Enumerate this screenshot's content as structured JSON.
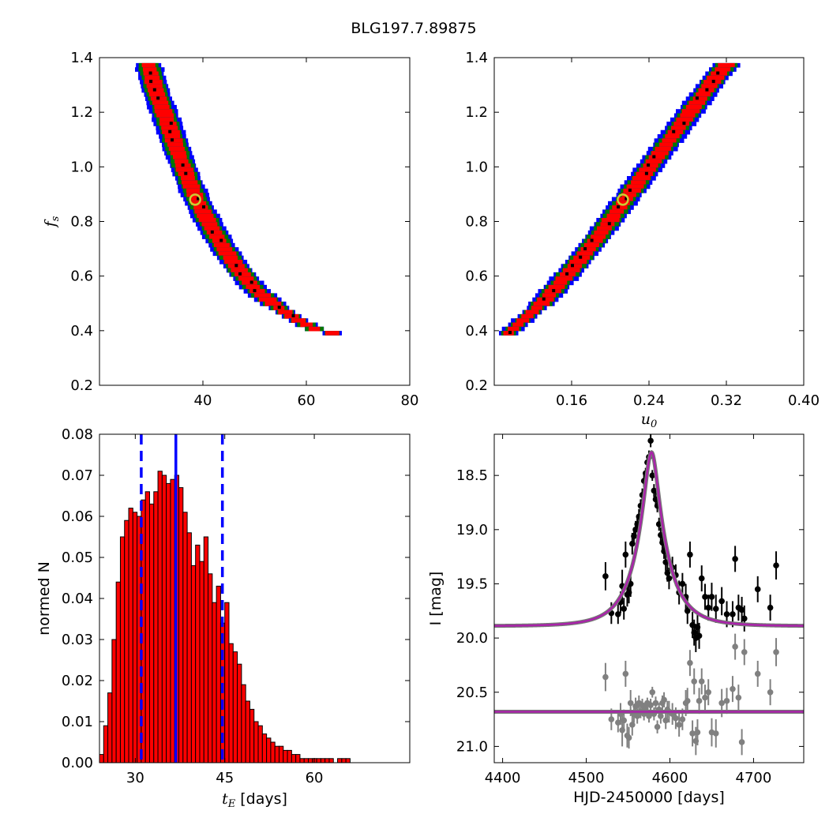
{
  "figure": {
    "title": "BLG197.7.89875"
  },
  "chart_data": [
    {
      "id": "fs_vs_tE",
      "type": "heatmap",
      "xlabel": "",
      "ylabel": "f_s",
      "ylabel_main": "f",
      "ylabel_sub": "s",
      "xlim": [
        20,
        80
      ],
      "ylim": [
        0.2,
        1.4
      ],
      "xticks": [
        40,
        60,
        80
      ],
      "yticks": [
        0.2,
        0.4,
        0.6,
        0.8,
        1.0,
        1.2,
        1.4
      ],
      "xtick_labels": [
        "40",
        "60",
        "80"
      ],
      "ytick_labels": [
        "0.2",
        "0.4",
        "0.6",
        "0.8",
        "1.0",
        "1.2",
        "1.4"
      ],
      "confidence_colors": [
        "#0000ff",
        "#007700",
        "#ff0000",
        "#000000"
      ],
      "ridge": [
        [
          29.5,
          1.38
        ],
        [
          31,
          1.28
        ],
        [
          33,
          1.18
        ],
        [
          35,
          1.07
        ],
        [
          37,
          0.97
        ],
        [
          39,
          0.88
        ],
        [
          41.5,
          0.79
        ],
        [
          44,
          0.71
        ],
        [
          47,
          0.63
        ],
        [
          50,
          0.56
        ],
        [
          54,
          0.5
        ],
        [
          58,
          0.45
        ],
        [
          62,
          0.41
        ],
        [
          65,
          0.4
        ]
      ],
      "best_fit": [
        38.5,
        0.88
      ]
    },
    {
      "id": "fs_vs_u0",
      "type": "heatmap",
      "xlabel": "u_0",
      "xlabel_main": "u",
      "xlabel_sub": "0",
      "ylabel": "",
      "xlim": [
        0.08,
        0.4
      ],
      "ylim": [
        0.2,
        1.4
      ],
      "xticks": [
        0.16,
        0.24,
        0.32,
        0.4
      ],
      "yticks": [
        0.2,
        0.4,
        0.6,
        0.8,
        1.0,
        1.2,
        1.4
      ],
      "xtick_labels": [
        "0.16",
        "0.24",
        "0.32",
        "0.40"
      ],
      "ytick_labels": [
        "0.2",
        "0.4",
        "0.6",
        "0.8",
        "1.0",
        "1.2",
        "1.4"
      ],
      "confidence_colors": [
        "#0000ff",
        "#007700",
        "#ff0000",
        "#000000"
      ],
      "ridge": [
        [
          0.092,
          0.39
        ],
        [
          0.13,
          0.51
        ],
        [
          0.16,
          0.63
        ],
        [
          0.185,
          0.74
        ],
        [
          0.21,
          0.86
        ],
        [
          0.235,
          0.98
        ],
        [
          0.26,
          1.1
        ],
        [
          0.285,
          1.22
        ],
        [
          0.31,
          1.34
        ],
        [
          0.32,
          1.38
        ]
      ],
      "best_fit": [
        0.213,
        0.88
      ]
    },
    {
      "id": "tE_histogram",
      "type": "bar",
      "xlabel": "t_E [days]",
      "xlabel_main": "t",
      "xlabel_sub": "E",
      "xlabel_rest": " [days]",
      "ylabel": "normed N",
      "xlim": [
        24,
        76
      ],
      "ylim": [
        0,
        0.08
      ],
      "xticks": [
        30,
        45,
        60
      ],
      "yticks": [
        0.0,
        0.01,
        0.02,
        0.03,
        0.04,
        0.05,
        0.06,
        0.07,
        0.08
      ],
      "xtick_labels": [
        "30",
        "45",
        "60"
      ],
      "ytick_labels": [
        "0.00",
        "0.01",
        "0.02",
        "0.03",
        "0.04",
        "0.05",
        "0.06",
        "0.07",
        "0.08"
      ],
      "bar_color": "#ff0000",
      "bin_start": 24.0,
      "bin_width": 0.7,
      "values": [
        0.002,
        0.009,
        0.017,
        0.03,
        0.044,
        0.055,
        0.059,
        0.062,
        0.061,
        0.06,
        0.064,
        0.066,
        0.063,
        0.066,
        0.071,
        0.07,
        0.068,
        0.069,
        0.07,
        0.067,
        0.061,
        0.056,
        0.048,
        0.053,
        0.049,
        0.055,
        0.046,
        0.039,
        0.043,
        0.034,
        0.039,
        0.029,
        0.027,
        0.024,
        0.019,
        0.015,
        0.013,
        0.01,
        0.009,
        0.007,
        0.006,
        0.005,
        0.004,
        0.004,
        0.003,
        0.003,
        0.002,
        0.002,
        0.001,
        0.001,
        0.001,
        0.001,
        0.001,
        0.001,
        0.001,
        0.001,
        0.0,
        0.001,
        0.001,
        0.001,
        0.0,
        0.0,
        0.0,
        0.0,
        0.0,
        0.0,
        0.0,
        0.0,
        0.0,
        0.0,
        0.0,
        0.0
      ],
      "vlines": [
        {
          "x": 36.8,
          "style": "solid",
          "color": "#0000ff"
        },
        {
          "x": 31.0,
          "style": "dashed",
          "color": "#0000ff"
        },
        {
          "x": 44.6,
          "style": "dashed",
          "color": "#0000ff"
        }
      ]
    },
    {
      "id": "light_curve",
      "type": "scatter",
      "xlabel": "HJD-2450000 [days]",
      "ylabel": "I [mag]",
      "xlim": [
        4390,
        4760
      ],
      "ylim": [
        21.15,
        18.12
      ],
      "xticks": [
        4400,
        4500,
        4600,
        4700
      ],
      "yticks": [
        18.5,
        19.0,
        19.5,
        20.0,
        20.5,
        21.0
      ],
      "xtick_labels": [
        "4400",
        "4500",
        "4600",
        "4700"
      ],
      "ytick_labels": [
        "18.5",
        "19.0",
        "19.5",
        "20.0",
        "20.5",
        "21.0"
      ],
      "model": {
        "t0": 4578,
        "tE": 37.0,
        "u0": 0.21,
        "baseline": 19.89,
        "fs": 0.88,
        "color": "#aa22aa"
      },
      "residual_baseline": 20.68,
      "series": [
        {
          "color": "#000000",
          "points": [
            [
              4523,
              19.43,
              0.13
            ],
            [
              4530,
              19.77,
              0.1
            ],
            [
              4538,
              19.78,
              0.09
            ],
            [
              4541,
              19.67,
              0.1
            ],
            [
              4543,
              19.52,
              0.15
            ],
            [
              4545,
              19.73,
              0.1
            ],
            [
              4547,
              19.23,
              0.12
            ],
            [
              4549,
              19.6,
              0.11
            ],
            [
              4551,
              19.58,
              0.1
            ],
            [
              4553,
              19.5,
              0.12
            ],
            [
              4555,
              19.13,
              0.1
            ],
            [
              4557,
              19.06,
              0.08
            ],
            [
              4559,
              19.0,
              0.08
            ],
            [
              4561,
              18.95,
              0.07
            ],
            [
              4563,
              18.88,
              0.07
            ],
            [
              4565,
              18.78,
              0.06
            ],
            [
              4567,
              18.68,
              0.06
            ],
            [
              4569,
              18.55,
              0.06
            ],
            [
              4571,
              18.48,
              0.05
            ],
            [
              4573,
              18.38,
              0.05
            ],
            [
              4575,
              18.33,
              0.06
            ],
            [
              4577,
              18.18,
              0.06
            ],
            [
              4579,
              18.5,
              0.05
            ],
            [
              4581,
              18.64,
              0.06
            ],
            [
              4583,
              18.72,
              0.06
            ],
            [
              4585,
              18.78,
              0.06
            ],
            [
              4587,
              18.95,
              0.06
            ],
            [
              4589,
              19.05,
              0.07
            ],
            [
              4591,
              19.12,
              0.07
            ],
            [
              4593,
              19.2,
              0.07
            ],
            [
              4595,
              19.3,
              0.08
            ],
            [
              4597,
              19.4,
              0.08
            ],
            [
              4599,
              19.45,
              0.1
            ],
            [
              4603,
              19.35,
              0.1
            ],
            [
              4607,
              19.42,
              0.1
            ],
            [
              4611,
              19.58,
              0.11
            ],
            [
              4615,
              19.5,
              0.1
            ],
            [
              4619,
              19.62,
              0.12
            ],
            [
              4621,
              19.75,
              0.12
            ],
            [
              4624,
              19.23,
              0.12
            ],
            [
              4627,
              19.88,
              0.12
            ],
            [
              4629,
              19.95,
              0.12
            ],
            [
              4631,
              20.0,
              0.13
            ],
            [
              4633,
              19.9,
              0.12
            ],
            [
              4635,
              19.98,
              0.12
            ],
            [
              4638,
              19.45,
              0.12
            ],
            [
              4642,
              19.62,
              0.12
            ],
            [
              4646,
              19.72,
              0.12
            ],
            [
              4650,
              19.62,
              0.13
            ],
            [
              4655,
              19.73,
              0.13
            ],
            [
              4662,
              19.66,
              0.13
            ],
            [
              4668,
              19.78,
              0.12
            ],
            [
              4675,
              19.78,
              0.12
            ],
            [
              4678,
              19.27,
              0.12
            ],
            [
              4682,
              19.72,
              0.12
            ],
            [
              4686,
              19.74,
              0.12
            ],
            [
              4689,
              19.82,
              0.12
            ],
            [
              4705,
              19.55,
              0.12
            ],
            [
              4720,
              19.72,
              0.12
            ],
            [
              4727,
              19.33,
              0.13
            ]
          ]
        },
        {
          "color": "#808080",
          "points": [
            [
              4523,
              20.36,
              0.13
            ],
            [
              4530,
              20.75,
              0.1
            ],
            [
              4538,
              20.78,
              0.09
            ],
            [
              4541,
              20.7,
              0.1
            ],
            [
              4543,
              20.85,
              0.15
            ],
            [
              4545,
              20.76,
              0.1
            ],
            [
              4547,
              20.33,
              0.12
            ],
            [
              4549,
              20.9,
              0.11
            ],
            [
              4551,
              20.92,
              0.1
            ],
            [
              4553,
              20.6,
              0.12
            ],
            [
              4555,
              20.8,
              0.1
            ],
            [
              4557,
              20.7,
              0.08
            ],
            [
              4559,
              20.63,
              0.08
            ],
            [
              4561,
              20.72,
              0.07
            ],
            [
              4563,
              20.6,
              0.07
            ],
            [
              4565,
              20.68,
              0.06
            ],
            [
              4567,
              20.62,
              0.06
            ],
            [
              4569,
              20.7,
              0.06
            ],
            [
              4571,
              20.65,
              0.05
            ],
            [
              4573,
              20.6,
              0.05
            ],
            [
              4575,
              20.72,
              0.06
            ],
            [
              4577,
              20.62,
              0.06
            ],
            [
              4579,
              20.5,
              0.05
            ],
            [
              4581,
              20.7,
              0.06
            ],
            [
              4583,
              20.6,
              0.06
            ],
            [
              4585,
              20.82,
              0.06
            ],
            [
              4587,
              20.66,
              0.06
            ],
            [
              4589,
              20.72,
              0.07
            ],
            [
              4591,
              20.6,
              0.07
            ],
            [
              4593,
              20.57,
              0.07
            ],
            [
              4595,
              20.76,
              0.08
            ],
            [
              4597,
              20.66,
              0.08
            ],
            [
              4599,
              20.68,
              0.1
            ],
            [
              4603,
              20.7,
              0.1
            ],
            [
              4607,
              20.74,
              0.1
            ],
            [
              4611,
              20.8,
              0.11
            ],
            [
              4615,
              20.75,
              0.1
            ],
            [
              4619,
              20.6,
              0.12
            ],
            [
              4621,
              20.58,
              0.12
            ],
            [
              4624,
              20.23,
              0.12
            ],
            [
              4627,
              20.88,
              0.12
            ],
            [
              4629,
              20.4,
              0.12
            ],
            [
              4631,
              20.95,
              0.13
            ],
            [
              4633,
              20.87,
              0.12
            ],
            [
              4635,
              20.58,
              0.12
            ],
            [
              4638,
              20.4,
              0.12
            ],
            [
              4642,
              20.55,
              0.12
            ],
            [
              4646,
              20.5,
              0.12
            ],
            [
              4650,
              20.87,
              0.13
            ],
            [
              4655,
              20.88,
              0.13
            ],
            [
              4662,
              20.6,
              0.13
            ],
            [
              4668,
              20.58,
              0.12
            ],
            [
              4675,
              20.47,
              0.12
            ],
            [
              4678,
              20.08,
              0.12
            ],
            [
              4682,
              20.55,
              0.12
            ],
            [
              4686,
              20.96,
              0.12
            ],
            [
              4689,
              20.13,
              0.12
            ],
            [
              4705,
              20.33,
              0.12
            ],
            [
              4720,
              20.5,
              0.12
            ],
            [
              4727,
              20.13,
              0.13
            ]
          ]
        }
      ]
    }
  ]
}
